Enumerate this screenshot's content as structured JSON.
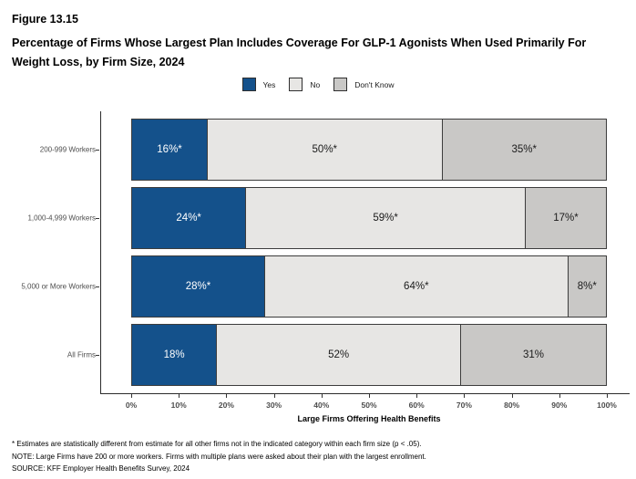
{
  "header": {
    "figure_number": "Figure 13.15",
    "title": "Percentage of Firms Whose Largest Plan Includes Coverage For GLP-1 Agonists When Used Primarily For Weight Loss, by Firm Size, 2024"
  },
  "legend": {
    "items": [
      {
        "label": "Yes",
        "color": "#14518b"
      },
      {
        "label": "No",
        "color": "#e7e6e4"
      },
      {
        "label": "Don't Know",
        "color": "#c9c8c6"
      }
    ]
  },
  "chart_data": {
    "type": "bar",
    "orientation": "horizontal",
    "stacked": true,
    "categories": [
      "200-999 Workers",
      "1,000-4,999 Workers",
      "5,000 or More Workers",
      "All Firms"
    ],
    "series": [
      {
        "name": "Yes",
        "color": "#14518b",
        "text_color": "#ffffff",
        "values": [
          16,
          24,
          28,
          18
        ],
        "labels": [
          "16%*",
          "24%*",
          "28%*",
          "18%"
        ]
      },
      {
        "name": "No",
        "color": "#e7e6e4",
        "text_color": "#1a1a1a",
        "values": [
          50,
          59,
          64,
          52
        ],
        "labels": [
          "50%*",
          "59%*",
          "64%*",
          "52%"
        ]
      },
      {
        "name": "Don't Know",
        "color": "#c9c8c6",
        "text_color": "#1a1a1a",
        "values": [
          35,
          17,
          8,
          31
        ],
        "labels": [
          "35%*",
          "17%*",
          "8%*",
          "31%"
        ]
      }
    ],
    "xlabel": "Large Firms Offering Health Benefits",
    "x_ticks": [
      "0%",
      "10%",
      "20%",
      "30%",
      "40%",
      "50%",
      "60%",
      "70%",
      "80%",
      "90%",
      "100%"
    ],
    "xlim": [
      0,
      100
    ],
    "grid": false,
    "legend_position": "top"
  },
  "footnotes": [
    "* Estimates are statistically different from estimate for all other firms not in the indicated category within each firm size (p < .05).",
    "NOTE: Large Firms have 200 or more workers.  Firms with multiple plans were asked about their plan with the largest enrollment.",
    "SOURCE: KFF Employer Health Benefits Survey, 2024"
  ]
}
